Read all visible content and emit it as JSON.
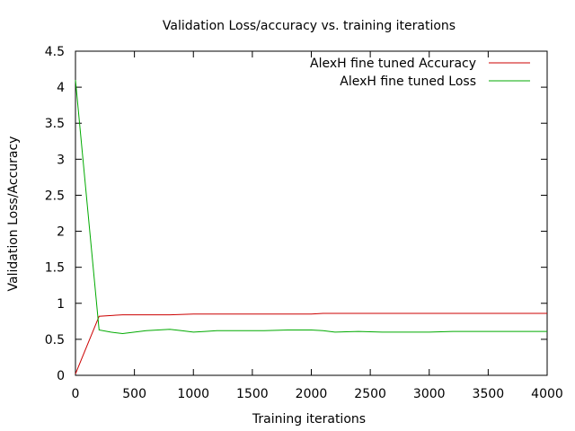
{
  "chart_data": {
    "type": "line",
    "title": "Validation Loss/accuracy  vs. training iterations",
    "xlabel": "Training iterations",
    "ylabel": "Validation Loss/Accuracy",
    "xlim": [
      0,
      4000
    ],
    "ylim": [
      0,
      4.5
    ],
    "x_ticks": [
      0,
      500,
      1000,
      1500,
      2000,
      2500,
      3000,
      3500,
      4000
    ],
    "y_ticks": [
      0,
      0.5,
      1,
      1.5,
      2,
      2.5,
      3,
      3.5,
      4,
      4.5
    ],
    "y_tick_labels": [
      "0",
      "0.5",
      "1",
      "1.5",
      "2",
      "2.5",
      "3",
      "3.5",
      "4",
      "4.5"
    ],
    "grid": false,
    "legend_position": "top-right",
    "series": [
      {
        "name": "AlexH fine tuned Accuracy",
        "color": "#cc0000",
        "points": [
          [
            0,
            0.02
          ],
          [
            200,
            0.82
          ],
          [
            400,
            0.84
          ],
          [
            600,
            0.84
          ],
          [
            800,
            0.84
          ],
          [
            1000,
            0.85
          ],
          [
            1200,
            0.85
          ],
          [
            1400,
            0.85
          ],
          [
            1600,
            0.85
          ],
          [
            1800,
            0.85
          ],
          [
            2000,
            0.85
          ],
          [
            2100,
            0.86
          ],
          [
            2400,
            0.86
          ],
          [
            3000,
            0.86
          ],
          [
            3500,
            0.86
          ],
          [
            4000,
            0.86
          ]
        ]
      },
      {
        "name": "AlexH fine tuned Loss",
        "color": "#00aa00",
        "points": [
          [
            0,
            4.1
          ],
          [
            200,
            0.63
          ],
          [
            300,
            0.6
          ],
          [
            400,
            0.58
          ],
          [
            500,
            0.6
          ],
          [
            600,
            0.62
          ],
          [
            700,
            0.63
          ],
          [
            800,
            0.64
          ],
          [
            900,
            0.62
          ],
          [
            1000,
            0.6
          ],
          [
            1100,
            0.61
          ],
          [
            1200,
            0.62
          ],
          [
            1400,
            0.62
          ],
          [
            1600,
            0.62
          ],
          [
            1800,
            0.63
          ],
          [
            2000,
            0.63
          ],
          [
            2100,
            0.62
          ],
          [
            2200,
            0.6
          ],
          [
            2400,
            0.61
          ],
          [
            2600,
            0.6
          ],
          [
            2800,
            0.6
          ],
          [
            3000,
            0.6
          ],
          [
            3200,
            0.61
          ],
          [
            3500,
            0.61
          ],
          [
            4000,
            0.61
          ]
        ]
      }
    ]
  }
}
